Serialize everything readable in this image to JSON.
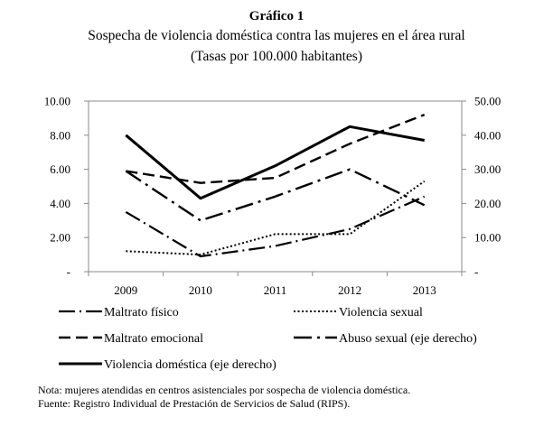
{
  "figure_label": "Gráfico 1",
  "chart_data": {
    "type": "line",
    "title": "Sospecha de violencia doméstica contra las mujeres en el área rural",
    "subtitle": "(Tasas por 100.000 habitantes)",
    "categories": [
      "2009",
      "2010",
      "2011",
      "2012",
      "2013"
    ],
    "left_axis": {
      "range": [
        0,
        10
      ],
      "tick_labels": [
        "-",
        "2.00",
        "4.00",
        "6.00",
        "8.00",
        "10.00"
      ]
    },
    "right_axis": {
      "range": [
        0,
        50
      ],
      "tick_labels": [
        "-",
        "10.00",
        "20.00",
        "30.00",
        "40.00",
        "50.00"
      ]
    },
    "grid": false,
    "legend_position": "bottom",
    "series": [
      {
        "name": "Maltrato físico",
        "axis": "left",
        "style": "dash-dot",
        "values": [
          3.5,
          0.9,
          1.5,
          2.5,
          4.4
        ]
      },
      {
        "name": "Violencia sexual",
        "axis": "left",
        "style": "dotted",
        "values": [
          1.2,
          1.0,
          2.2,
          2.2,
          5.3
        ]
      },
      {
        "name": "Maltrato emocional",
        "axis": "left",
        "style": "dashed",
        "values": [
          5.9,
          5.2,
          5.5,
          7.5,
          9.2
        ]
      },
      {
        "name": "Abuso sexual (eje derecho)",
        "axis": "right",
        "style": "dash-dot-long",
        "values": [
          29.5,
          15.0,
          22.0,
          30.0,
          19.5
        ]
      },
      {
        "name": "Violencia doméstica (eje derecho)",
        "axis": "right",
        "style": "solid",
        "values": [
          40.0,
          21.5,
          31.0,
          42.5,
          38.5
        ]
      }
    ]
  },
  "note": "Nota: mujeres atendidas en centros asistenciales por sospecha de violencia doméstica.",
  "source": "Fuente: Registro Individual de Prestación de Servicios de Salud (RIPS)."
}
